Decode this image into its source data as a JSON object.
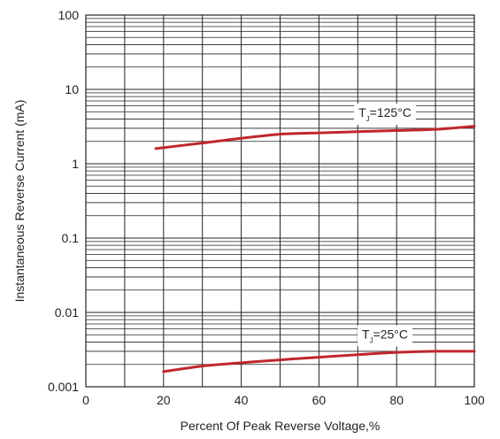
{
  "chart_data": {
    "type": "line",
    "title": "",
    "xlabel": "Percent Of Peak Reverse Voltage,%",
    "ylabel": "Instantaneous Reverse Current (mA)",
    "xlim": [
      0,
      100
    ],
    "ylim": [
      0.001,
      100
    ],
    "yscale": "log",
    "grid": true,
    "x_ticks": [
      0,
      20,
      40,
      60,
      80,
      100
    ],
    "x_tick_labels": [
      "0",
      "20",
      "40",
      "60",
      "80",
      "100"
    ],
    "y_ticks": [
      100,
      10,
      1,
      0.1,
      0.01,
      0.001
    ],
    "y_tick_labels": [
      "100",
      "10",
      "1",
      "0.1",
      "0.01",
      "0.001"
    ],
    "series": [
      {
        "name": "TJ=125°C",
        "color": "#c0272d",
        "x": [
          18,
          30,
          40,
          50,
          60,
          70,
          80,
          90,
          100
        ],
        "y": [
          1.6,
          1.9,
          2.2,
          2.5,
          2.6,
          2.7,
          2.8,
          2.9,
          3.2
        ]
      },
      {
        "name": "TJ=25°C",
        "color": "#c0272d",
        "x": [
          20,
          30,
          40,
          50,
          60,
          70,
          80,
          90,
          100
        ],
        "y": [
          0.0016,
          0.0019,
          0.0021,
          0.0023,
          0.0025,
          0.0027,
          0.0029,
          0.003,
          0.003
        ]
      }
    ],
    "annotations": [
      {
        "main": "T",
        "sub": "J",
        "rest": "=125°C",
        "x": 77,
        "y": 4.9
      },
      {
        "main": "T",
        "sub": "J",
        "rest": "=25°C",
        "x": 77,
        "y": 0.0051
      }
    ]
  }
}
